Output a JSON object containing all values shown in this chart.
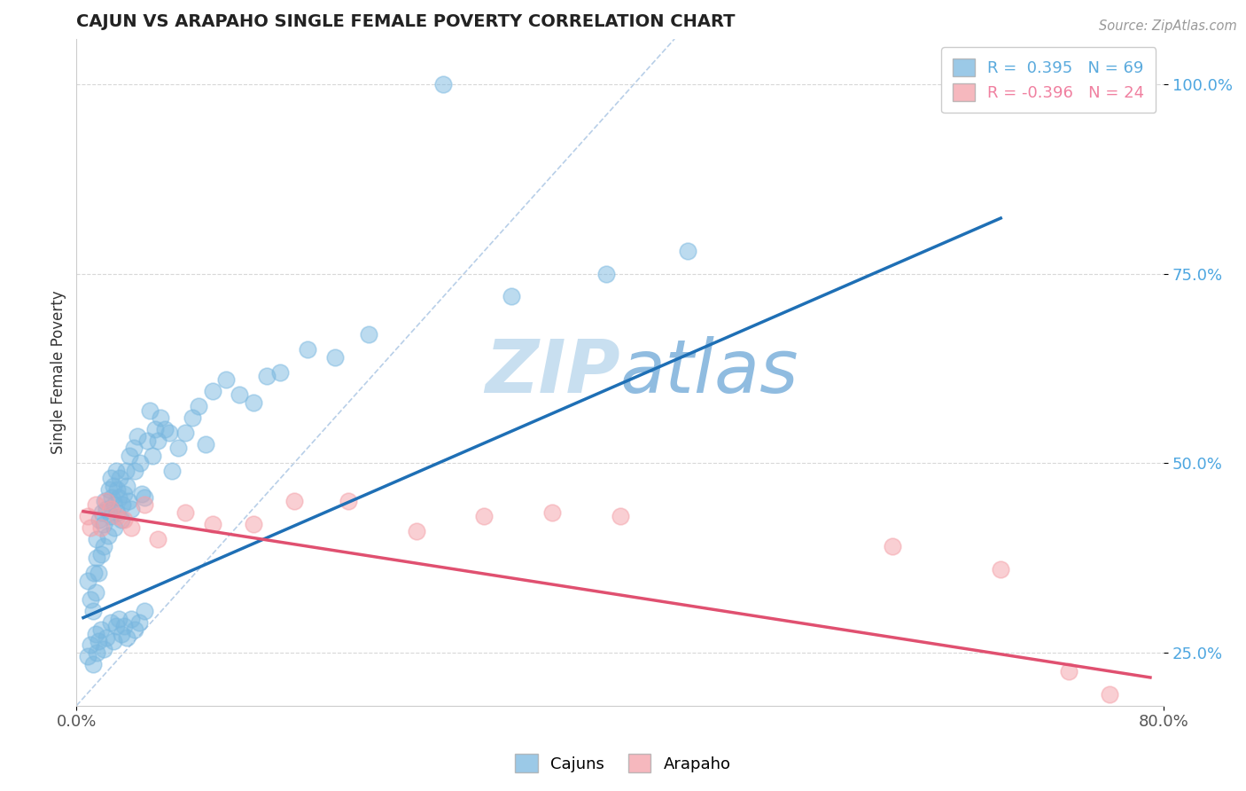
{
  "title": "CAJUN VS ARAPAHO SINGLE FEMALE POVERTY CORRELATION CHART",
  "source_text": "Source: ZipAtlas.com",
  "ylabel": "Single Female Poverty",
  "xlim": [
    0.0,
    0.8
  ],
  "ylim": [
    0.18,
    1.06
  ],
  "cajun_color": "#7ab8e0",
  "arapaho_color": "#f4a0a8",
  "trendline_cajun_color": "#1e6fb5",
  "trendline_arapaho_color": "#e05070",
  "diagonal_color": "#b8cfe8",
  "watermark_zip": "ZIP",
  "watermark_atlas": "atlas",
  "watermark_color_zip": "#c8dff0",
  "watermark_color_atlas": "#90bce0",
  "legend_label_cajun": "R =  0.395   N = 69",
  "legend_label_arapaho": "R = -0.396   N = 24",
  "legend_color_cajun": "#7ab8e0",
  "legend_color_arapaho": "#f4a0a8",
  "legend_text_color_cajun": "#5aaadd",
  "legend_text_color_arapaho": "#f080a0",
  "cajun_x": [
    0.008,
    0.01,
    0.012,
    0.013,
    0.014,
    0.015,
    0.015,
    0.016,
    0.017,
    0.018,
    0.019,
    0.02,
    0.02,
    0.021,
    0.022,
    0.023,
    0.024,
    0.025,
    0.025,
    0.026,
    0.027,
    0.028,
    0.028,
    0.029,
    0.03,
    0.03,
    0.031,
    0.032,
    0.033,
    0.034,
    0.035,
    0.036,
    0.037,
    0.038,
    0.039,
    0.04,
    0.042,
    0.043,
    0.045,
    0.047,
    0.048,
    0.05,
    0.052,
    0.054,
    0.056,
    0.058,
    0.06,
    0.062,
    0.065,
    0.068,
    0.07,
    0.075,
    0.08,
    0.085,
    0.09,
    0.095,
    0.1,
    0.11,
    0.12,
    0.13,
    0.14,
    0.15,
    0.17,
    0.19,
    0.215,
    0.27,
    0.32,
    0.39,
    0.45
  ],
  "cajun_y": [
    0.345,
    0.32,
    0.305,
    0.355,
    0.33,
    0.4,
    0.375,
    0.355,
    0.425,
    0.38,
    0.435,
    0.42,
    0.39,
    0.45,
    0.44,
    0.405,
    0.465,
    0.48,
    0.43,
    0.455,
    0.47,
    0.415,
    0.445,
    0.49,
    0.435,
    0.465,
    0.455,
    0.48,
    0.425,
    0.445,
    0.46,
    0.49,
    0.47,
    0.45,
    0.51,
    0.44,
    0.52,
    0.49,
    0.535,
    0.5,
    0.46,
    0.455,
    0.53,
    0.57,
    0.51,
    0.545,
    0.53,
    0.56,
    0.545,
    0.54,
    0.49,
    0.52,
    0.54,
    0.56,
    0.575,
    0.525,
    0.595,
    0.61,
    0.59,
    0.58,
    0.615,
    0.62,
    0.65,
    0.64,
    0.67,
    1.0,
    0.72,
    0.75,
    0.78
  ],
  "cajun_x_low": [
    0.008,
    0.01,
    0.012,
    0.014,
    0.015,
    0.016,
    0.018,
    0.02,
    0.022,
    0.025,
    0.027,
    0.029,
    0.031,
    0.033,
    0.035,
    0.037,
    0.04,
    0.043,
    0.046,
    0.05
  ],
  "cajun_y_low": [
    0.245,
    0.26,
    0.235,
    0.275,
    0.25,
    0.265,
    0.28,
    0.255,
    0.27,
    0.29,
    0.265,
    0.285,
    0.295,
    0.275,
    0.285,
    0.27,
    0.295,
    0.28,
    0.29,
    0.305
  ],
  "arapaho_x": [
    0.008,
    0.01,
    0.014,
    0.018,
    0.022,
    0.025,
    0.03,
    0.035,
    0.04,
    0.05,
    0.06,
    0.08,
    0.1,
    0.13,
    0.16,
    0.2,
    0.25,
    0.3,
    0.35,
    0.4,
    0.6,
    0.68,
    0.73,
    0.76
  ],
  "arapaho_y": [
    0.43,
    0.415,
    0.445,
    0.415,
    0.45,
    0.44,
    0.43,
    0.425,
    0.415,
    0.445,
    0.4,
    0.435,
    0.42,
    0.42,
    0.45,
    0.45,
    0.41,
    0.43,
    0.435,
    0.43,
    0.39,
    0.36,
    0.225,
    0.195
  ]
}
